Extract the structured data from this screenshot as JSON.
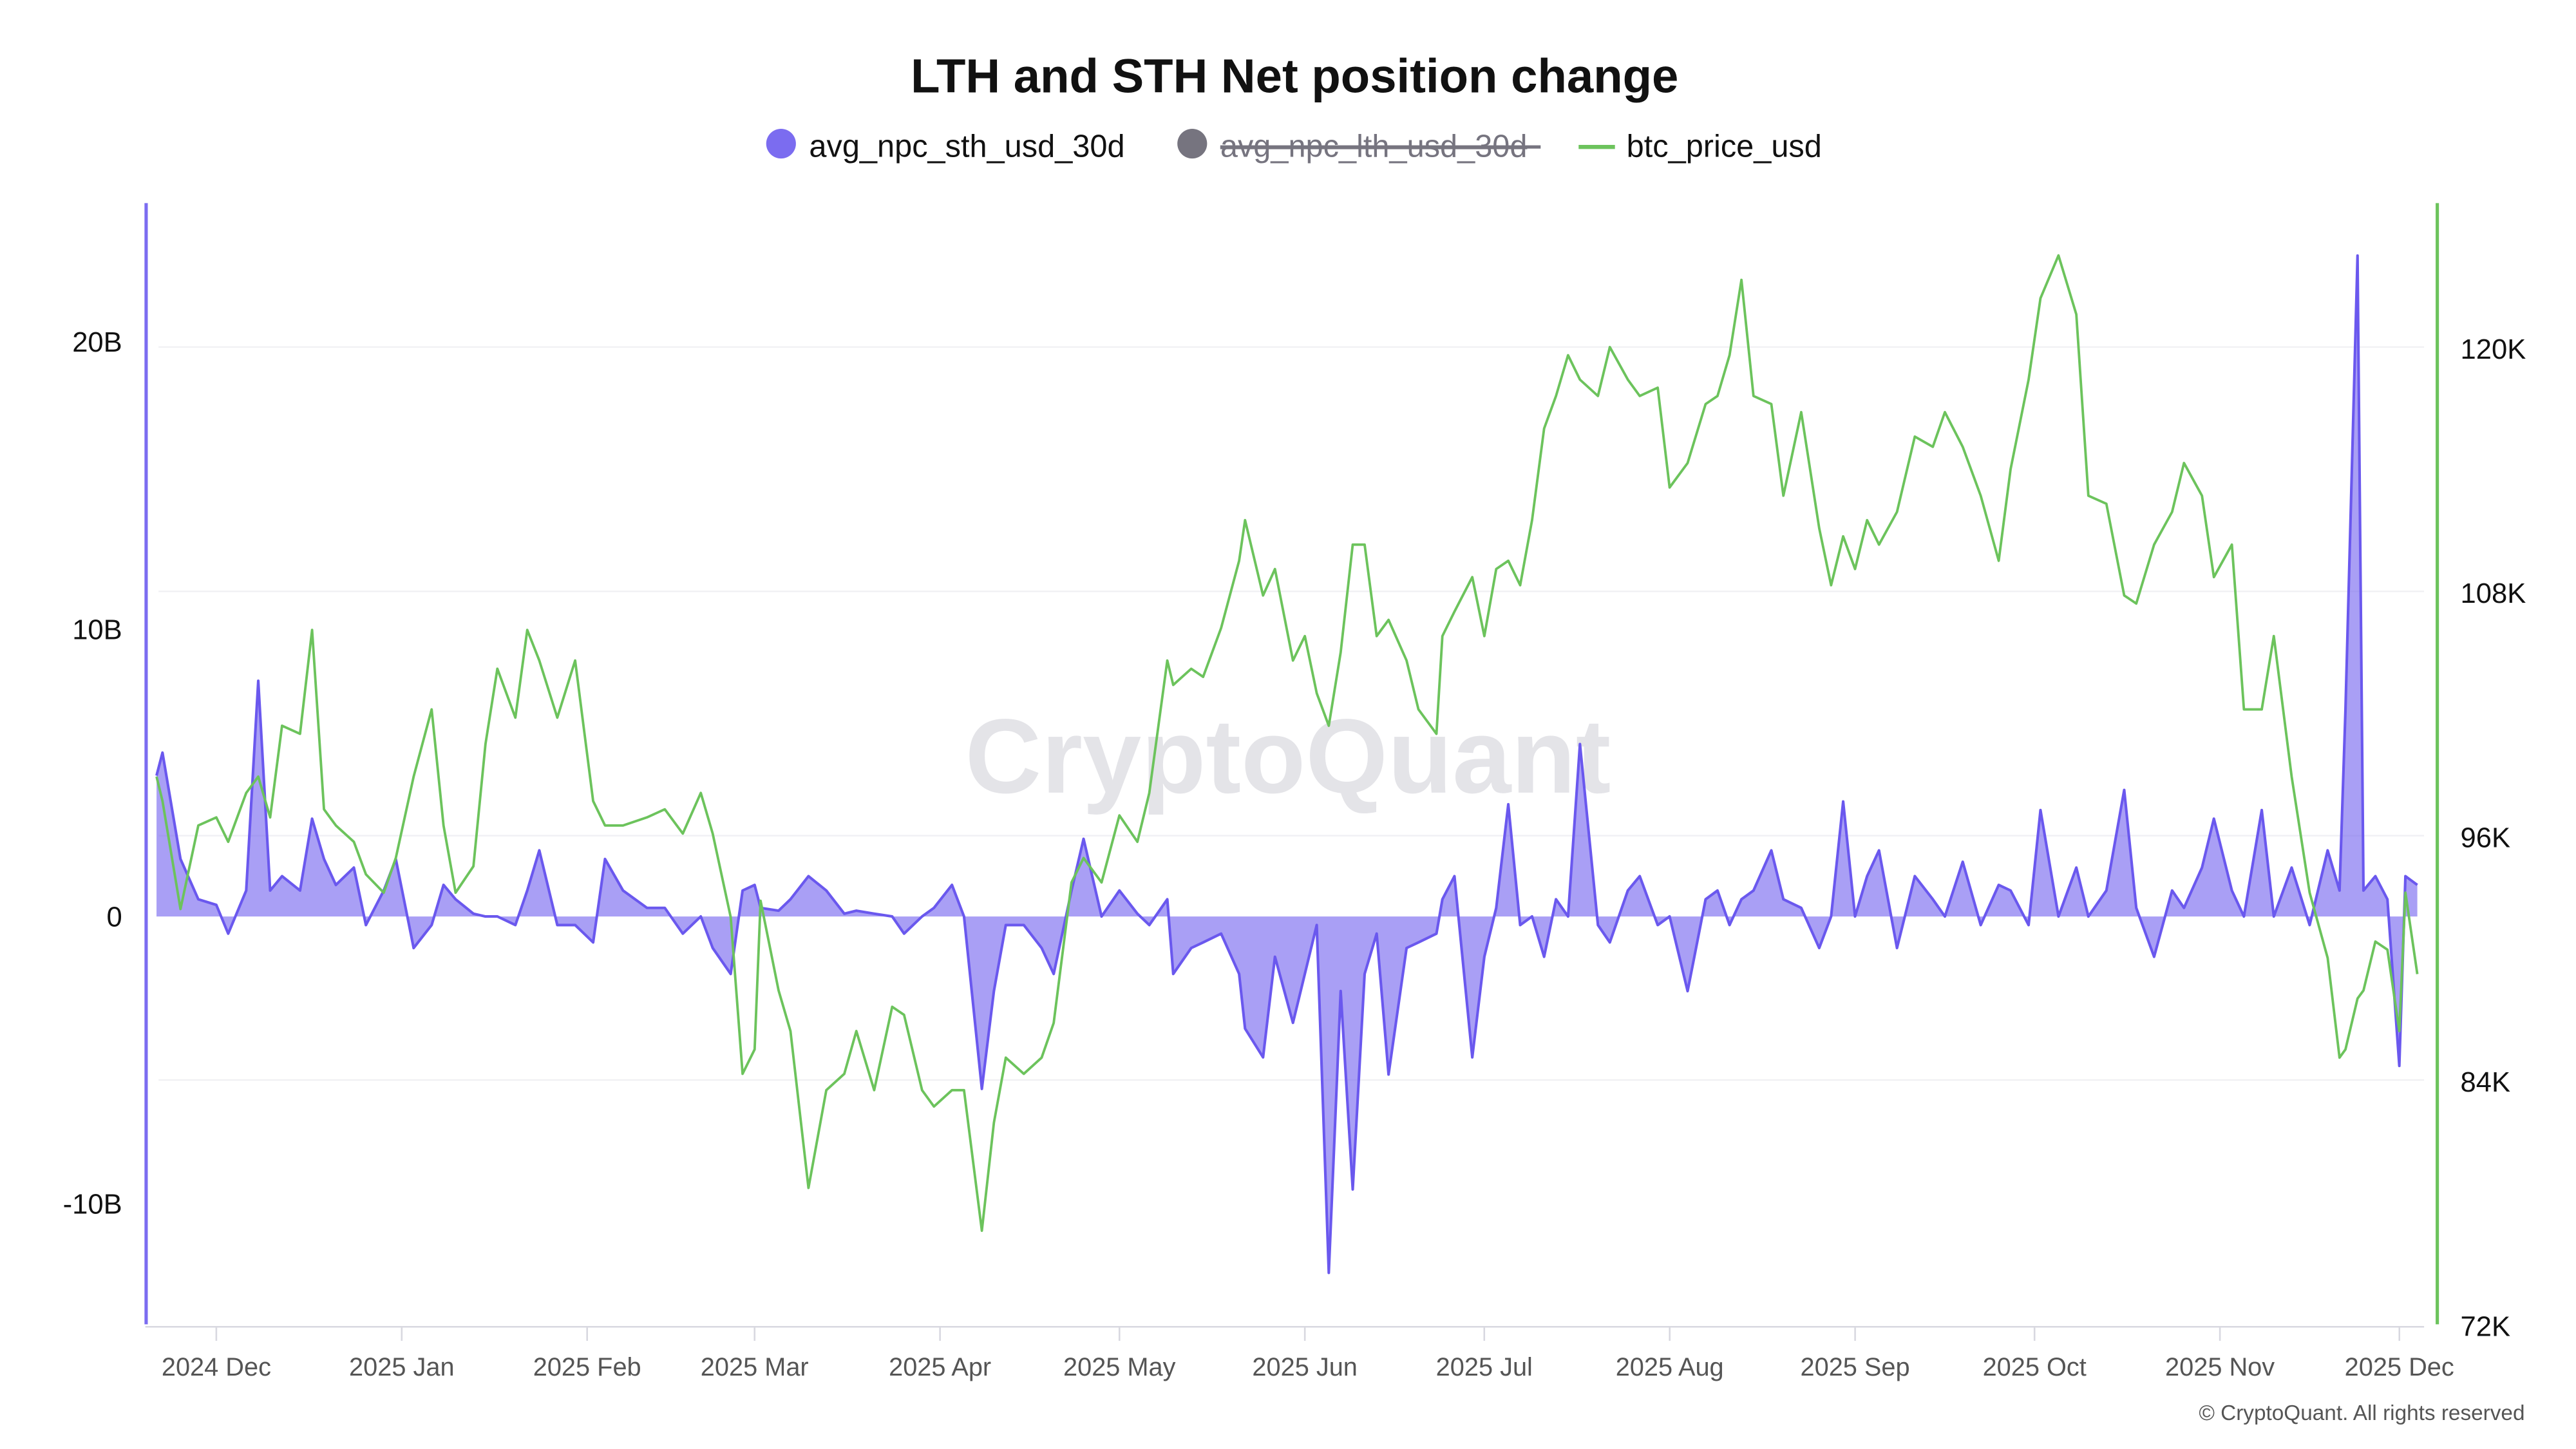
{
  "chart_data": {
    "type": "area+line",
    "title": "LTH and STH Net position change",
    "legend": [
      {
        "name": "avg_npc_sth_usd_30d",
        "color": "#7b6cf0",
        "visible": true
      },
      {
        "name": "avg_npc_lth_usd_30d",
        "color": "#76747f",
        "visible": false
      },
      {
        "name": "btc_price_usd",
        "color": "#6cc35c",
        "visible": true
      }
    ],
    "legend_position": "top-center",
    "watermark": "CryptoQuant",
    "footer": "© CryptoQuant. All rights reserved",
    "x_ticks": [
      "2024 Dec",
      "2025 Jan",
      "2025 Feb",
      "2025 Mar",
      "2025 Apr",
      "2025 May",
      "2025 Jun",
      "2025 Jul",
      "2025 Aug",
      "2025 Sep",
      "2025 Oct",
      "2025 Nov",
      "2025 Dec"
    ],
    "x_tick_dates": [
      "2024-12-01",
      "2025-01-01",
      "2025-02-01",
      "2025-03-01",
      "2025-04-01",
      "2025-05-01",
      "2025-06-01",
      "2025-07-01",
      "2025-08-01",
      "2025-09-01",
      "2025-10-01",
      "2025-11-01",
      "2025-12-01"
    ],
    "y_left": {
      "ticks": [
        "20B",
        "10B",
        "0",
        "-10B"
      ],
      "tick_values": [
        20,
        10,
        0,
        -10
      ],
      "unit": "B USD",
      "color": "#7b6cf0"
    },
    "y_right": {
      "ticks": [
        "120K",
        "108K",
        "96K",
        "84K",
        "72K"
      ],
      "tick_values": [
        120,
        108,
        96,
        84,
        72
      ],
      "range": [
        72,
        127
      ],
      "unit": "K USD",
      "color": "#6cc35c"
    },
    "grid": true,
    "columns": [
      "date",
      "avg_npc_sth_usd_30d (B)",
      "btc_price_usd (K)"
    ],
    "points": [
      [
        "2024-11-21",
        4.9,
        98.9
      ],
      [
        "2024-11-22",
        5.7,
        97.7
      ],
      [
        "2024-11-25",
        2.0,
        92.4
      ],
      [
        "2024-11-28",
        0.6,
        96.5
      ],
      [
        "2024-12-01",
        0.4,
        96.9
      ],
      [
        "2024-12-03",
        -0.6,
        95.7
      ],
      [
        "2024-12-06",
        0.9,
        98.1
      ],
      [
        "2024-12-08",
        8.2,
        98.9
      ],
      [
        "2024-12-10",
        0.9,
        96.9
      ],
      [
        "2024-12-12",
        1.4,
        101.4
      ],
      [
        "2024-12-15",
        0.9,
        101.0
      ],
      [
        "2024-12-17",
        3.4,
        106.1
      ],
      [
        "2024-12-19",
        2.0,
        97.3
      ],
      [
        "2024-12-21",
        1.1,
        96.5
      ],
      [
        "2024-12-24",
        1.7,
        95.7
      ],
      [
        "2024-12-26",
        -0.3,
        94.1
      ],
      [
        "2024-12-29",
        0.9,
        93.2
      ],
      [
        "2024-12-31",
        2.0,
        94.9
      ],
      [
        "2025-01-03",
        -1.1,
        98.9
      ],
      [
        "2025-01-06",
        -0.3,
        102.2
      ],
      [
        "2025-01-08",
        1.1,
        96.5
      ],
      [
        "2025-01-10",
        0.6,
        93.2
      ],
      [
        "2025-01-13",
        0.1,
        94.5
      ],
      [
        "2025-01-15",
        0,
        100.5
      ],
      [
        "2025-01-17",
        0,
        104.2
      ],
      [
        "2025-01-20",
        -0.3,
        101.8
      ],
      [
        "2025-01-22",
        0.9,
        106.1
      ],
      [
        "2025-01-24",
        2.3,
        104.6
      ],
      [
        "2025-01-27",
        -0.3,
        101.8
      ],
      [
        "2025-01-30",
        -0.3,
        104.6
      ],
      [
        "2025-02-02",
        -0.9,
        97.7
      ],
      [
        "2025-02-04",
        2.0,
        96.5
      ],
      [
        "2025-02-07",
        0.9,
        96.5
      ],
      [
        "2025-02-11",
        0.3,
        96.9
      ],
      [
        "2025-02-14",
        0.3,
        97.3
      ],
      [
        "2025-02-17",
        -0.6,
        96.1
      ],
      [
        "2025-02-20",
        0,
        98.1
      ],
      [
        "2025-02-22",
        -1.1,
        96.1
      ],
      [
        "2025-02-25",
        -2.0,
        92.0
      ],
      [
        "2025-02-27",
        0.9,
        84.3
      ],
      [
        "2025-03-01",
        1.1,
        85.5
      ],
      [
        "2025-03-02",
        0.3,
        92.8
      ],
      [
        "2025-03-05",
        0.2,
        88.4
      ],
      [
        "2025-03-07",
        0.6,
        86.4
      ],
      [
        "2025-03-10",
        1.4,
        78.7
      ],
      [
        "2025-03-13",
        0.9,
        83.5
      ],
      [
        "2025-03-16",
        0.1,
        84.3
      ],
      [
        "2025-03-18",
        0.2,
        86.4
      ],
      [
        "2025-03-21",
        0.1,
        83.5
      ],
      [
        "2025-03-24",
        0,
        87.6
      ],
      [
        "2025-03-26",
        -0.6,
        87.2
      ],
      [
        "2025-03-29",
        0,
        83.5
      ],
      [
        "2025-03-31",
        0.3,
        82.7
      ],
      [
        "2025-04-03",
        1.1,
        83.5
      ],
      [
        "2025-04-05",
        0,
        83.5
      ],
      [
        "2025-04-08",
        -6.0,
        76.6
      ],
      [
        "2025-04-10",
        -2.6,
        81.9
      ],
      [
        "2025-04-12",
        -0.3,
        85.1
      ],
      [
        "2025-04-15",
        -0.3,
        84.3
      ],
      [
        "2025-04-18",
        -1.1,
        85.1
      ],
      [
        "2025-04-20",
        -2.0,
        86.8
      ],
      [
        "2025-04-23",
        0.9,
        93.7
      ],
      [
        "2025-04-25",
        2.7,
        94.9
      ],
      [
        "2025-04-28",
        0,
        93.7
      ],
      [
        "2025-05-01",
        0.9,
        97.0
      ],
      [
        "2025-05-04",
        0.1,
        95.7
      ],
      [
        "2025-05-06",
        -0.3,
        98.1
      ],
      [
        "2025-05-09",
        0.6,
        104.6
      ],
      [
        "2025-05-10",
        -2.0,
        103.4
      ],
      [
        "2025-05-13",
        -1.1,
        104.2
      ],
      [
        "2025-05-15",
        -0.9,
        103.8
      ],
      [
        "2025-05-18",
        -0.6,
        106.2
      ],
      [
        "2025-05-21",
        -2.0,
        109.5
      ],
      [
        "2025-05-22",
        -3.9,
        111.5
      ],
      [
        "2025-05-25",
        -4.9,
        107.8
      ],
      [
        "2025-05-27",
        -1.4,
        109.1
      ],
      [
        "2025-05-30",
        -3.7,
        104.6
      ],
      [
        "2025-06-01",
        -2.0,
        105.8
      ],
      [
        "2025-06-03",
        -0.3,
        103.0
      ],
      [
        "2025-06-05",
        -12.4,
        101.4
      ],
      [
        "2025-06-07",
        -2.6,
        105.0
      ],
      [
        "2025-06-09",
        -9.5,
        110.3
      ],
      [
        "2025-06-11",
        -2.0,
        110.3
      ],
      [
        "2025-06-13",
        -0.6,
        105.8
      ],
      [
        "2025-06-15",
        -5.5,
        106.6
      ],
      [
        "2025-06-18",
        -1.1,
        104.6
      ],
      [
        "2025-06-20",
        -0.9,
        102.2
      ],
      [
        "2025-06-23",
        -0.6,
        101.0
      ],
      [
        "2025-06-24",
        0.6,
        105.8
      ],
      [
        "2025-06-26",
        1.4,
        107.0
      ],
      [
        "2025-06-29",
        -4.9,
        108.7
      ],
      [
        "2025-07-01",
        -1.4,
        105.8
      ],
      [
        "2025-07-03",
        0.3,
        109.1
      ],
      [
        "2025-07-05",
        3.9,
        109.5
      ],
      [
        "2025-07-07",
        -0.3,
        108.3
      ],
      [
        "2025-07-09",
        0,
        111.5
      ],
      [
        "2025-07-11",
        -1.4,
        116.0
      ],
      [
        "2025-07-13",
        0.6,
        117.6
      ],
      [
        "2025-07-15",
        0,
        119.6
      ],
      [
        "2025-07-17",
        6.0,
        118.4
      ],
      [
        "2025-07-20",
        -0.3,
        117.6
      ],
      [
        "2025-07-22",
        -0.9,
        120.0
      ],
      [
        "2025-07-25",
        0.9,
        118.4
      ],
      [
        "2025-07-27",
        1.4,
        117.6
      ],
      [
        "2025-07-30",
        -0.3,
        118.0
      ],
      [
        "2025-08-01",
        0,
        113.1
      ],
      [
        "2025-08-04",
        -2.6,
        114.3
      ],
      [
        "2025-08-07",
        0.6,
        117.2
      ],
      [
        "2025-08-09",
        0.9,
        117.6
      ],
      [
        "2025-08-11",
        -0.3,
        119.6
      ],
      [
        "2025-08-13",
        0.6,
        123.3
      ],
      [
        "2025-08-15",
        0.9,
        117.6
      ],
      [
        "2025-08-18",
        2.3,
        117.2
      ],
      [
        "2025-08-20",
        0.6,
        112.7
      ],
      [
        "2025-08-23",
        0.3,
        116.8
      ],
      [
        "2025-08-26",
        -1.1,
        111.1
      ],
      [
        "2025-08-28",
        0,
        108.3
      ],
      [
        "2025-08-30",
        4.0,
        110.7
      ],
      [
        "2025-09-01",
        0,
        109.1
      ],
      [
        "2025-09-03",
        1.4,
        111.5
      ],
      [
        "2025-09-05",
        2.3,
        110.3
      ],
      [
        "2025-09-08",
        -1.1,
        111.9
      ],
      [
        "2025-09-11",
        1.4,
        115.6
      ],
      [
        "2025-09-14",
        0.6,
        115.1
      ],
      [
        "2025-09-16",
        0,
        116.8
      ],
      [
        "2025-09-19",
        1.9,
        115.1
      ],
      [
        "2025-09-22",
        -0.3,
        112.7
      ],
      [
        "2025-09-25",
        1.1,
        109.5
      ],
      [
        "2025-09-27",
        0.9,
        114.0
      ],
      [
        "2025-09-30",
        -0.3,
        118.4
      ],
      [
        "2025-10-02",
        3.7,
        122.4
      ],
      [
        "2025-10-05",
        0,
        124.5
      ],
      [
        "2025-10-08",
        1.7,
        121.6
      ],
      [
        "2025-10-10",
        0,
        112.7
      ],
      [
        "2025-10-13",
        0.9,
        112.3
      ],
      [
        "2025-10-16",
        4.4,
        107.8
      ],
      [
        "2025-10-18",
        0.3,
        107.4
      ],
      [
        "2025-10-21",
        -1.4,
        110.3
      ],
      [
        "2025-10-24",
        0.9,
        111.9
      ],
      [
        "2025-10-26",
        0.3,
        114.3
      ],
      [
        "2025-10-29",
        1.7,
        112.7
      ],
      [
        "2025-10-31",
        3.4,
        108.7
      ],
      [
        "2025-11-03",
        0.9,
        110.3
      ],
      [
        "2025-11-05",
        0,
        102.2
      ],
      [
        "2025-11-08",
        3.7,
        102.2
      ],
      [
        "2025-11-10",
        0,
        105.8
      ],
      [
        "2025-11-13",
        1.7,
        98.9
      ],
      [
        "2025-11-16",
        -0.3,
        93.2
      ],
      [
        "2025-11-19",
        2.3,
        90.0
      ],
      [
        "2025-11-21",
        0.9,
        85.1
      ],
      [
        "2025-11-22",
        7.2,
        85.5
      ],
      [
        "2025-11-24",
        23.0,
        88.0
      ],
      [
        "2025-11-25",
        0.9,
        88.4
      ],
      [
        "2025-11-27",
        1.4,
        90.8
      ],
      [
        "2025-11-29",
        0.6,
        90.4
      ],
      [
        "2025-12-01",
        -5.2,
        86.4
      ],
      [
        "2025-12-02",
        1.4,
        93.2
      ],
      [
        "2025-12-04",
        1.1,
        89.2
      ]
    ]
  }
}
